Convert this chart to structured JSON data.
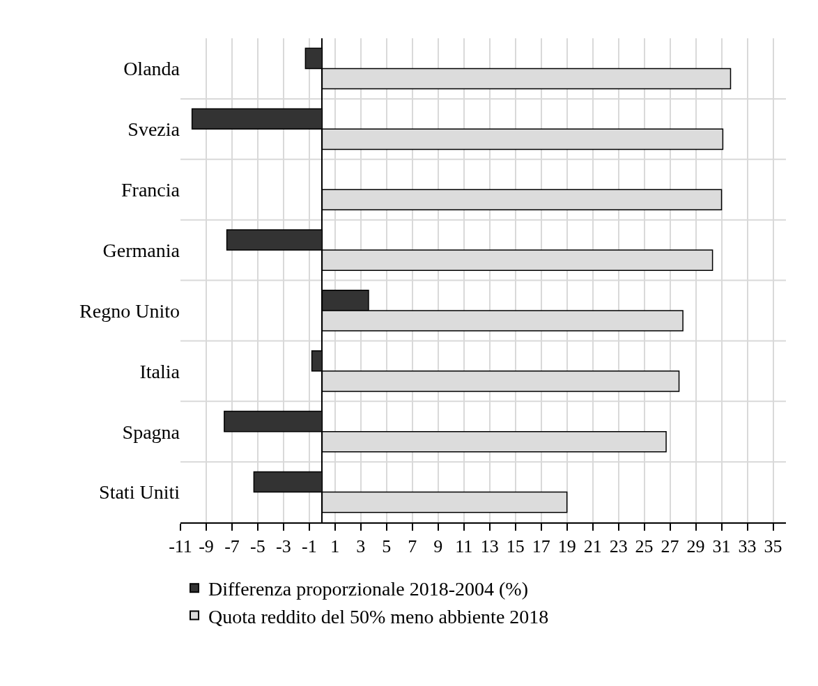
{
  "chart_data": {
    "type": "bar",
    "orientation": "horizontal",
    "categories": [
      "Olanda",
      "Svezia",
      "Francia",
      "Germania",
      "Regno Unito",
      "Italia",
      "Spagna",
      "Stati Uniti"
    ],
    "series": [
      {
        "name": "Differenza proporzionale 2018-2004 (%)",
        "color": "#333333",
        "values": [
          -1.3,
          -10.1,
          null,
          -7.4,
          3.6,
          -0.8,
          -7.6,
          -5.3
        ]
      },
      {
        "name": "Quota reddito del 50% meno abbiente 2018",
        "color": "#dcdcdc",
        "values": [
          31.7,
          31.1,
          31.0,
          30.3,
          28.0,
          27.7,
          26.7,
          19.0
        ]
      }
    ],
    "xlim": [
      -11,
      36
    ],
    "xticks": [
      -11,
      -9,
      -7,
      -5,
      -3,
      -1,
      1,
      3,
      5,
      7,
      9,
      11,
      13,
      15,
      17,
      19,
      21,
      23,
      25,
      27,
      29,
      31,
      33,
      35
    ],
    "grid": true,
    "legend": "bottom"
  }
}
